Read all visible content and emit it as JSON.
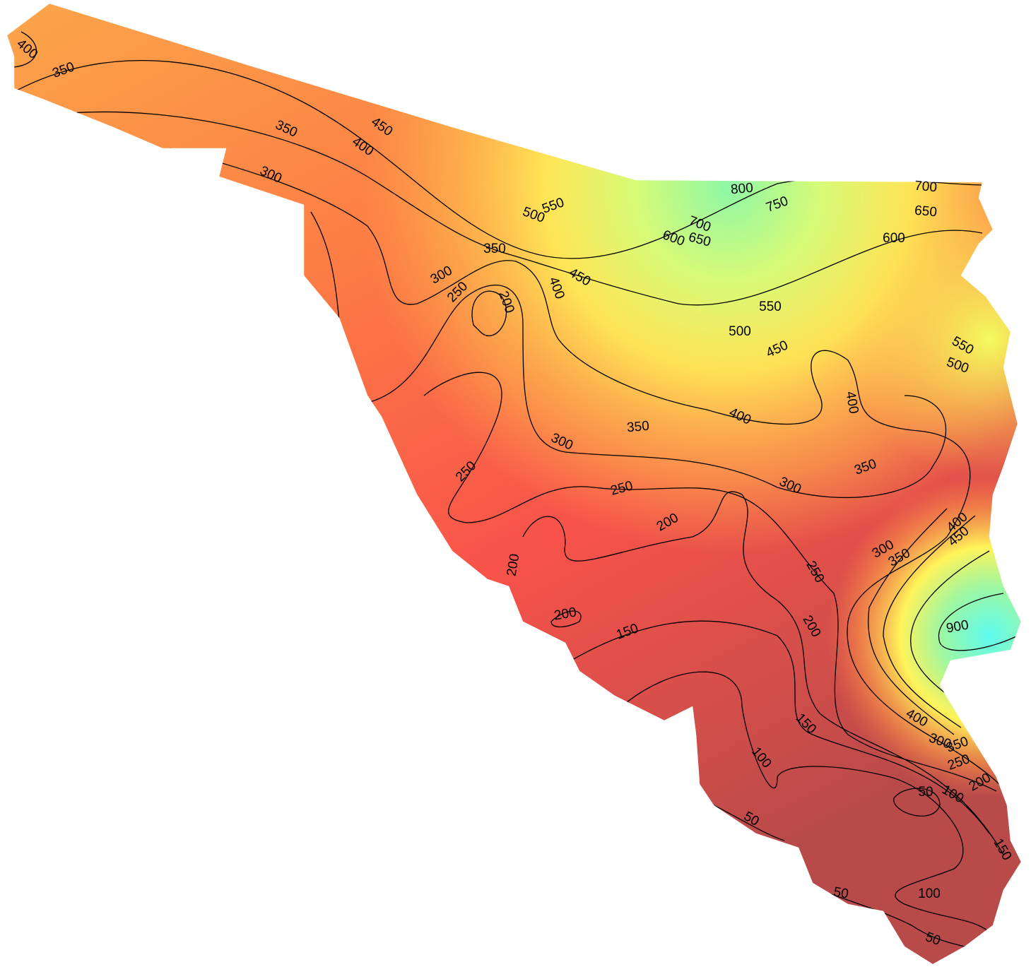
{
  "contour_labels": [
    "400",
    "350",
    "350",
    "300",
    "450",
    "400",
    "550",
    "500",
    "800",
    "750",
    "700",
    "650",
    "600",
    "700",
    "650",
    "600",
    "350",
    "300",
    "250",
    "200",
    "400",
    "450",
    "550",
    "500",
    "450",
    "550",
    "500",
    "400",
    "400",
    "350",
    "300",
    "350",
    "300",
    "250",
    "250",
    "200",
    "400",
    "450",
    "300",
    "350",
    "250",
    "200",
    "200",
    "900",
    "150",
    "200",
    "400",
    "150",
    "350",
    "300",
    "250",
    "200",
    "100",
    "50",
    "100",
    "50",
    "150",
    "100",
    "50",
    "50"
  ]
}
